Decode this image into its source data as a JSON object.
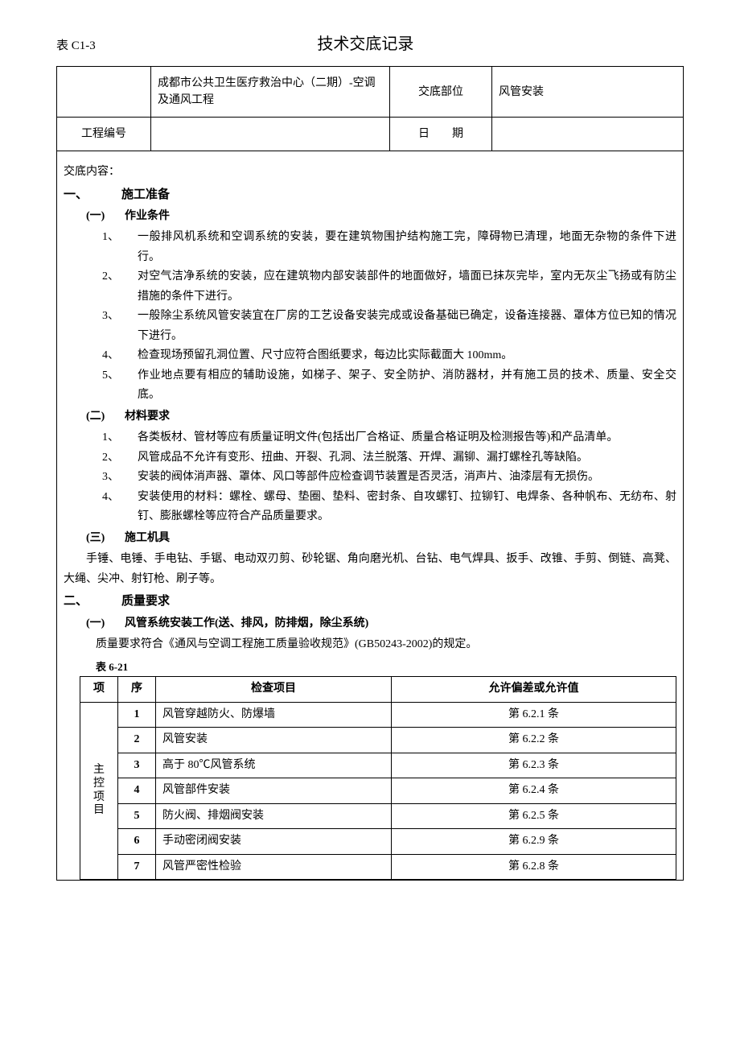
{
  "form_code": "表 C1-3",
  "doc_title": "技术交底记录",
  "header": {
    "project_name": "成都市公共卫生医疗救治中心（二期）-空调及通风工程",
    "part_label": "交底部位",
    "part_value": "风管安装",
    "proj_no_label": "工程编号",
    "proj_no_value": "",
    "date_label": "日　　期",
    "date_value": ""
  },
  "content_label": "交底内容：",
  "sec1": {
    "num": "一、",
    "title": "施工准备",
    "sub1": {
      "num": "(一)",
      "title": "作业条件",
      "items": [
        {
          "n": "1、",
          "t": "一般排风机系统和空调系统的安装，要在建筑物围护结构施工完，障碍物已清理，地面无杂物的条件下进行。"
        },
        {
          "n": "2、",
          "t": "对空气洁净系统的安装，应在建筑物内部安装部件的地面做好，墙面已抹灰完毕，室内无灰尘飞扬或有防尘措施的条件下进行。"
        },
        {
          "n": "3、",
          "t": "一般除尘系统风管安装宜在厂房的工艺设备安装完成或设备基础已确定，设备连接器、罩体方位已知的情况下进行。"
        },
        {
          "n": "4、",
          "t": "检查现场预留孔洞位置、尺寸应符合图纸要求，每边比实际截面大 100mm。"
        },
        {
          "n": "5、",
          "t": "作业地点要有相应的辅助设施，如梯子、架子、安全防护、消防器材，并有施工员的技术、质量、安全交底。"
        }
      ]
    },
    "sub2": {
      "num": "(二)",
      "title": "材料要求",
      "items": [
        {
          "n": "1、",
          "t": "各类板材、管材等应有质量证明文件(包括出厂合格证、质量合格证明及检测报告等)和产品清单。"
        },
        {
          "n": "2、",
          "t": "风管成品不允许有变形、扭曲、开裂、孔洞、法兰脱落、开焊、漏铆、漏打螺栓孔等缺陷。"
        },
        {
          "n": "3、",
          "t": "安装的阀体消声器、罩体、风口等部件应检查调节装置是否灵活，消声片、油漆层有无损伤。"
        },
        {
          "n": "4、",
          "t": "安装使用的材料：螺栓、螺母、垫圈、垫料、密封条、自攻螺钉、拉铆钉、电焊条、各种帆布、无纺布、射钉、膨胀螺栓等应符合产品质量要求。"
        }
      ]
    },
    "sub3": {
      "num": "(三)",
      "title": "施工机具",
      "para": "手锤、电锤、手电钻、手锯、电动双刃剪、砂轮锯、角向磨光机、台钻、电气焊具、扳手、改锥、手剪、倒链、高凳、大绳、尖冲、射钉枪、刷子等。"
    }
  },
  "sec2": {
    "num": "二、",
    "title": "质量要求",
    "sub1": {
      "num": "(一)",
      "title": "风管系统安装工作(送、排风，防排烟，除尘系统)"
    },
    "qual_para": "质量要求符合《通风与空调工程施工质量验收规范》(GB50243-2002)的规定。",
    "table_label": "表 6-21",
    "table": {
      "headers": [
        "项",
        "序",
        "检查项目",
        "允许偏差或允许值"
      ],
      "group_label": "主控项目",
      "rows": [
        {
          "seq": "1",
          "item": "风管穿越防火、防爆墙",
          "val": "第 6.2.1 条"
        },
        {
          "seq": "2",
          "item": "风管安装",
          "val": "第 6.2.2 条"
        },
        {
          "seq": "3",
          "item": "高于 80℃风管系统",
          "val": "第 6.2.3 条"
        },
        {
          "seq": "4",
          "item": "风管部件安装",
          "val": "第 6.2.4 条"
        },
        {
          "seq": "5",
          "item": "防火阀、排烟阀安装",
          "val": "第 6.2.5 条"
        },
        {
          "seq": "6",
          "item": "手动密闭阀安装",
          "val": "第 6.2.9 条"
        },
        {
          "seq": "7",
          "item": "风管严密性检验",
          "val": "第 6.2.8 条"
        }
      ]
    }
  }
}
